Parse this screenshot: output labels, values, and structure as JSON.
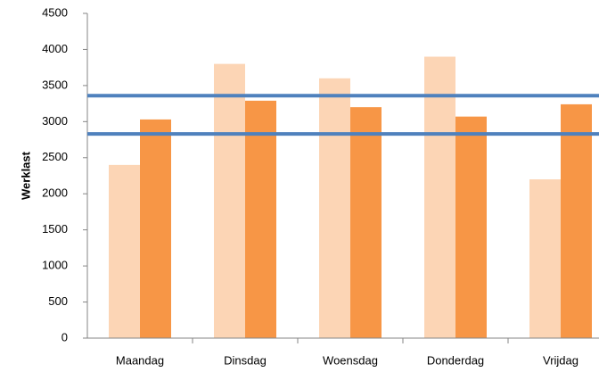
{
  "chart_data": {
    "type": "bar",
    "y_axis_label": "Werklast",
    "categories": [
      "Maandag",
      "Dinsdag",
      "Woensdag",
      "Donderdag",
      "Vrijdag"
    ],
    "series": [
      {
        "color": "#fcd5b5",
        "values": [
          2400,
          3800,
          3600,
          3900,
          2200
        ]
      },
      {
        "color": "#f79646",
        "values": [
          3030,
          3290,
          3200,
          3070,
          3240
        ]
      }
    ],
    "reference_lines": {
      "color": "#4f81bd",
      "values": [
        3360,
        2830
      ]
    },
    "ylim": [
      0,
      4500
    ],
    "yticks": [
      0,
      500,
      1000,
      1500,
      2000,
      2500,
      3000,
      3500,
      4000,
      4500
    ]
  }
}
